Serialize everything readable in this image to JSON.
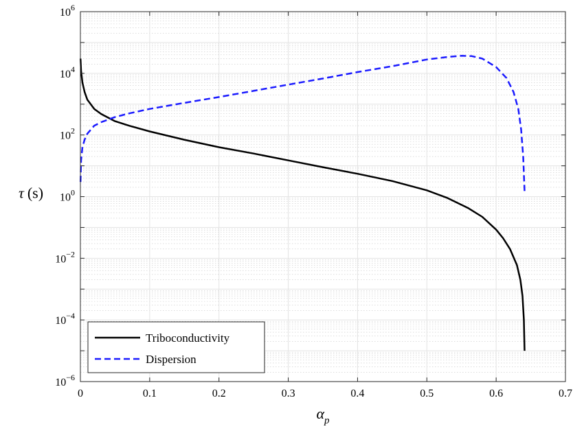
{
  "chart_data": {
    "type": "line",
    "xlabel": "α_p",
    "xlabel_main": "α",
    "xlabel_sub": "p",
    "ylabel": "τ (s)",
    "ylabel_main": "τ",
    "ylabel_unit": "(s)",
    "xlim": [
      0,
      0.7
    ],
    "ylim": [
      1e-06,
      1000000.0
    ],
    "yscale": "log",
    "grid": true,
    "minor_grid": true,
    "legend_position": "bottom-left",
    "x_ticks": [
      0,
      0.1,
      0.2,
      0.3,
      0.4,
      0.5,
      0.6,
      0.7
    ],
    "x_tick_labels": [
      "0",
      "0.1",
      "0.2",
      "0.3",
      "0.4",
      "0.5",
      "0.6",
      "0.7"
    ],
    "y_ticks": [
      {
        "value": 1000000.0,
        "base": "10",
        "exp": "6"
      },
      {
        "value": 10000.0,
        "base": "10",
        "exp": "4"
      },
      {
        "value": 100.0,
        "base": "10",
        "exp": "2"
      },
      {
        "value": 1,
        "base": "10",
        "exp": "0"
      },
      {
        "value": 0.01,
        "base": "10",
        "exp": "−2"
      },
      {
        "value": 0.0001,
        "base": "10",
        "exp": "−4"
      },
      {
        "value": 1e-06,
        "base": "10",
        "exp": "−6"
      }
    ],
    "series": [
      {
        "name": "Triboconductivity",
        "color": "#000000",
        "style": "solid",
        "x": [
          0.0002,
          0.001,
          0.003,
          0.006,
          0.01,
          0.02,
          0.03,
          0.05,
          0.07,
          0.1,
          0.15,
          0.2,
          0.25,
          0.3,
          0.35,
          0.4,
          0.45,
          0.5,
          0.53,
          0.56,
          0.58,
          0.6,
          0.61,
          0.62,
          0.63,
          0.635,
          0.638,
          0.64,
          0.641
        ],
        "y": [
          30000,
          12000,
          5000,
          2500,
          1400,
          700,
          480,
          280,
          200,
          130,
          70,
          40,
          25,
          15,
          9,
          5.5,
          3.2,
          1.6,
          0.9,
          0.42,
          0.22,
          0.085,
          0.045,
          0.02,
          0.006,
          0.002,
          0.0006,
          0.0001,
          1e-05
        ]
      },
      {
        "name": "Dispersion",
        "color": "#1a1aff",
        "style": "dashed",
        "x": [
          0.0002,
          0.001,
          0.003,
          0.006,
          0.01,
          0.02,
          0.03,
          0.05,
          0.07,
          0.1,
          0.15,
          0.2,
          0.25,
          0.3,
          0.35,
          0.4,
          0.45,
          0.5,
          0.53,
          0.55,
          0.565,
          0.58,
          0.6,
          0.615,
          0.625,
          0.632,
          0.636,
          0.639,
          0.641
        ],
        "y": [
          3,
          15,
          40,
          70,
          110,
          200,
          260,
          380,
          500,
          700,
          1100,
          1700,
          2700,
          4300,
          6800,
          11000,
          17000,
          28000,
          34000,
          37000,
          36000,
          30000,
          16000,
          7000,
          2500,
          700,
          150,
          20,
          1.5
        ]
      }
    ]
  }
}
